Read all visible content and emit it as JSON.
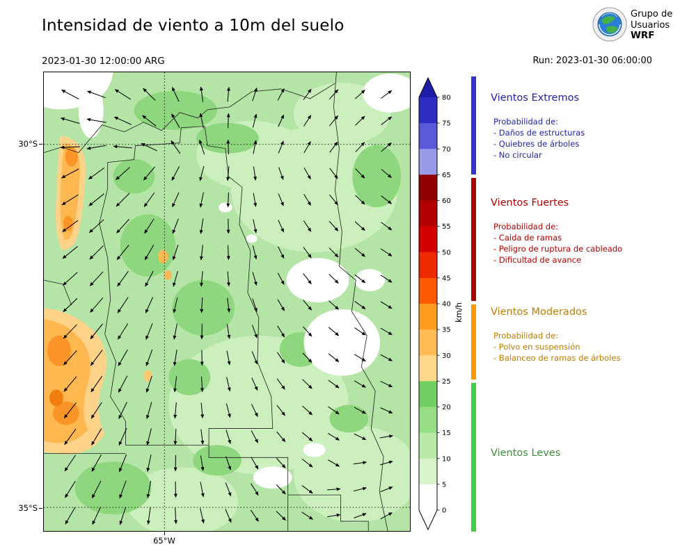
{
  "header": {
    "title": "Intensidad de viento a 10m del suelo",
    "valid_time": "2023-01-30 12:00:00 ARG",
    "run_label": "Run: 2023-01-30 06:00:00",
    "logo": {
      "line1": "Grupo de",
      "line2": "Usuarios",
      "line3": "WRF"
    }
  },
  "map": {
    "x_ticks": [
      "65°W"
    ],
    "y_ticks": [
      "30°S",
      "35°S"
    ],
    "arrows": {
      "cols": [
        38,
        76,
        114,
        152,
        190,
        228,
        266,
        304,
        342,
        380,
        418,
        456,
        494
      ],
      "rows": [
        32,
        70,
        108,
        146,
        184,
        222,
        260,
        298,
        336,
        374,
        412,
        450,
        488,
        526,
        564,
        602,
        640
      ],
      "len_by_col": [
        28,
        28,
        27,
        25,
        23,
        22,
        21,
        20,
        19,
        19,
        19,
        19,
        19
      ],
      "angles": [
        [
          208,
          200,
          212,
          225,
          245,
          262,
          275,
          288,
          298,
          306,
          312,
          318,
          324
        ],
        [
          196,
          190,
          204,
          218,
          240,
          258,
          272,
          284,
          295,
          303,
          310,
          316,
          322
        ],
        [
          178,
          170,
          185,
          205,
          235,
          252,
          268,
          281,
          292,
          300,
          307,
          313,
          319
        ],
        [
          152,
          144,
          138,
          130,
          118,
          105,
          95,
          82,
          70,
          60,
          52,
          46,
          40
        ],
        [
          148,
          141,
          135,
          126,
          114,
          102,
          92,
          80,
          68,
          58,
          50,
          44,
          38
        ],
        [
          144,
          138,
          132,
          123,
          111,
          99,
          89,
          78,
          66,
          56,
          48,
          42,
          36
        ],
        [
          141,
          135,
          129,
          120,
          108,
          97,
          87,
          76,
          64,
          54,
          46,
          40,
          34
        ],
        [
          138,
          133,
          126,
          117,
          106,
          95,
          85,
          74,
          62,
          52,
          44,
          38,
          33
        ],
        [
          136,
          131,
          124,
          114,
          103,
          93,
          83,
          72,
          60,
          50,
          42,
          36,
          32
        ],
        [
          134,
          129,
          122,
          112,
          101,
          91,
          81,
          70,
          58,
          48,
          40,
          34,
          30
        ],
        [
          132,
          127,
          120,
          110,
          99,
          89,
          79,
          68,
          56,
          46,
          38,
          32,
          28
        ],
        [
          130,
          125,
          118,
          108,
          97,
          87,
          77,
          66,
          54,
          44,
          36,
          30,
          26
        ],
        [
          128,
          123,
          116,
          106,
          95,
          85,
          75,
          64,
          52,
          42,
          34,
          28,
          24
        ],
        [
          126,
          121,
          114,
          104,
          93,
          83,
          73,
          62,
          50,
          40,
          32,
          26,
          350
        ],
        [
          124,
          119,
          112,
          102,
          91,
          81,
          71,
          60,
          48,
          38,
          30,
          352,
          344
        ],
        [
          122,
          117,
          110,
          100,
          89,
          79,
          69,
          58,
          46,
          36,
          356,
          346,
          338
        ],
        [
          120,
          115,
          108,
          98,
          87,
          77,
          67,
          56,
          44,
          34,
          350,
          340,
          332
        ]
      ]
    }
  },
  "colorbar": {
    "unit": "km/h",
    "ticks": [
      80,
      75,
      70,
      65,
      60,
      55,
      50,
      45,
      40,
      35,
      30,
      25,
      20,
      15,
      10,
      5,
      0
    ],
    "over_color": "#1e1ea8",
    "under_color": "#ffffff",
    "segments_top_to_bottom": [
      {
        "range": "75-80",
        "color": "#2e2ec4"
      },
      {
        "range": "70-75",
        "color": "#5a5ad8"
      },
      {
        "range": "65-70",
        "color": "#9a9ae8"
      },
      {
        "range": "60-65",
        "color": "#8f0000"
      },
      {
        "range": "55-60",
        "color": "#b20000"
      },
      {
        "range": "50-55",
        "color": "#d40000"
      },
      {
        "range": "45-50",
        "color": "#ee2a00"
      },
      {
        "range": "40-45",
        "color": "#fd5a00"
      },
      {
        "range": "35-40",
        "color": "#ff9c1f"
      },
      {
        "range": "30-35",
        "color": "#ffbb55"
      },
      {
        "range": "25-30",
        "color": "#ffd98a"
      },
      {
        "range": "20-25",
        "color": "#72cf63"
      },
      {
        "range": "15-20",
        "color": "#97dd85"
      },
      {
        "range": "10-15",
        "color": "#b9e9a8"
      },
      {
        "range": "5-10",
        "color": "#d8f3cc"
      },
      {
        "range": "0-5",
        "color": "#ffffff"
      }
    ]
  },
  "legend": {
    "sections": [
      {
        "title": "Vientos Extremos",
        "subtitle": "Probabilidad de:",
        "items": [
          "- Daños de estructuras",
          "- Quiebres de árboles",
          "- No circular"
        ],
        "text_color": "#2222aa",
        "strip_color": "#3333cc"
      },
      {
        "title": "Vientos Fuertes",
        "subtitle": "Probabilidad de:",
        "items": [
          "- Caida de ramas",
          "- Peligro de ruptura de cableado",
          "- Dificultad de avance"
        ],
        "text_color": "#b30000",
        "strip_color": "#aa0000"
      },
      {
        "title": "Vientos Moderados",
        "subtitle": "Probabilidad de:",
        "items": [
          "- Polvo en suspensión",
          "- Balanceo de ramas de árboles"
        ],
        "text_color": "#c07d00",
        "strip_color": "#ff9900"
      },
      {
        "title": "Vientos Leves",
        "subtitle": "",
        "items": [],
        "text_color": "#3c8c3c",
        "strip_color": "#44cc44"
      }
    ]
  },
  "chart_data": {
    "type": "heatmap",
    "title": "Intensidad de viento a 10m del suelo",
    "valid_time": "2023-01-30 12:00:00 ARG",
    "model_run": "Run: 2023-01-30 06:00:00",
    "units": "km/h",
    "x_axis": {
      "label": "",
      "ticks": [
        "65°W"
      ]
    },
    "y_axis": {
      "label": "",
      "ticks": [
        "30°S",
        "35°S"
      ]
    },
    "colorbar_ticks": [
      0,
      5,
      10,
      15,
      20,
      25,
      30,
      35,
      40,
      45,
      50,
      55,
      60,
      65,
      70,
      75,
      80
    ],
    "colorbar_extend": "both",
    "legend_position": "right",
    "wind_categories": [
      {
        "name": "Vientos Leves",
        "min_kmh": 0,
        "max_kmh": 25,
        "color_family": "greens"
      },
      {
        "name": "Vientos Moderados",
        "min_kmh": 25,
        "max_kmh": 40,
        "color_family": "oranges"
      },
      {
        "name": "Vientos Fuertes",
        "min_kmh": 40,
        "max_kmh": 65,
        "color_family": "reds"
      },
      {
        "name": "Vientos Extremos",
        "min_kmh": 65,
        "max_kmh": 85,
        "color_family": "blues"
      }
    ],
    "field_summary": "Vientos leves de 5-25 km/h (verdes) dominan la región; áreas de vientos moderados de 25-40 km/h (naranjas) sobre el oeste; sin zonas en rangos fuertes o extremos; flechas indican dirección del viento."
  }
}
